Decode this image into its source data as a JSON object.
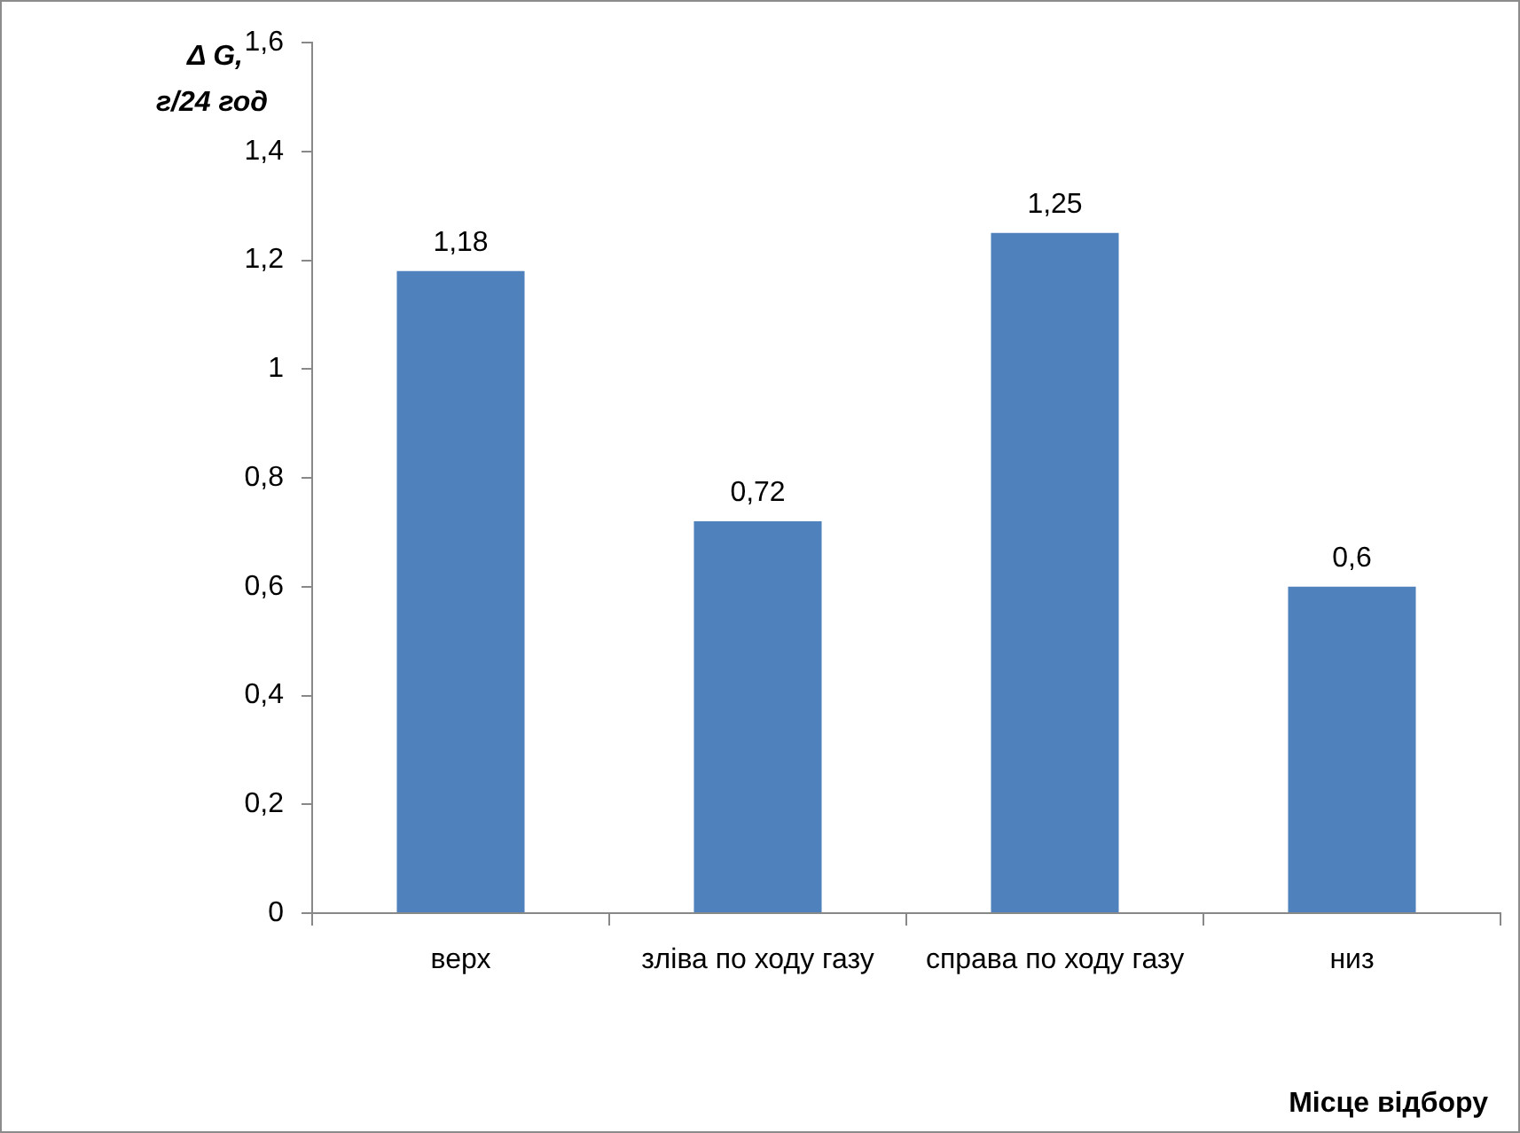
{
  "chart_data": {
    "type": "bar",
    "xlabel": "Місце відбору",
    "ylabel": "Δ G, г/24 год",
    "categories": [
      "верх",
      "зліва по ходу газу",
      "справа по ходу газу",
      "низ"
    ],
    "values": [
      1.18,
      0.72,
      1.25,
      0.6
    ],
    "value_labels": [
      "1,18",
      "0,72",
      "1,25",
      "0,6"
    ],
    "color": "#4f81bd",
    "ylim": [
      0,
      1.6
    ],
    "yticks": [
      0,
      {
        "value": 0.2,
        "label": "0,2"
      },
      {
        "value": 0.4,
        "label": "0,4"
      },
      {
        "value": 0.6,
        "label": "0,6"
      },
      {
        "value": 0.8,
        "label": "0,8"
      },
      1,
      {
        "value": 1.2,
        "label": "1,2"
      },
      {
        "value": 1.4,
        "label": "1,4"
      },
      {
        "value": 1.6,
        "label": "1,6"
      }
    ],
    "grid": false,
    "legend": false
  }
}
